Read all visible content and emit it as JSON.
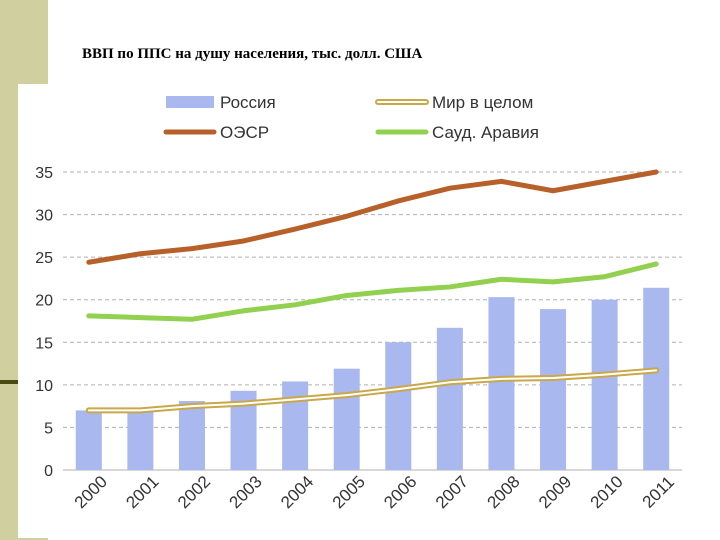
{
  "title": "ВВП по ППС на душу населения, тыс. долл. США",
  "colors": {
    "side_strip": "#cfcf9f",
    "russia_bar": "#a9b8ef",
    "world_line": "#c9a84a",
    "oecd_line": "#b8602a",
    "saudi_line": "#92d050",
    "grid": "#b0b0b0"
  },
  "chart_data": {
    "type": "bar",
    "title": "ВВП по ППС на душу населения, тыс. долл. США",
    "xlabel": "",
    "ylabel": "",
    "categories": [
      "2000",
      "2001",
      "2002",
      "2003",
      "2004",
      "2005",
      "2006",
      "2007",
      "2008",
      "2009",
      "2010",
      "2011"
    ],
    "ylim": [
      0,
      35
    ],
    "yticks": [
      0,
      5,
      10,
      15,
      20,
      25,
      30,
      35
    ],
    "grid": true,
    "legend_position": "top",
    "series": [
      {
        "name": "Россия",
        "kind": "bar",
        "values": [
          7,
          7.2,
          8.1,
          9.3,
          10.4,
          11.9,
          15,
          16.7,
          20.3,
          18.9,
          20,
          21.4
        ]
      },
      {
        "name": "Мир в целом",
        "kind": "line",
        "values": [
          7,
          7,
          7.5,
          7.8,
          8.3,
          8.8,
          9.5,
          10.3,
          10.7,
          10.8,
          11.2,
          11.7
        ]
      },
      {
        "name": "ОЭСР",
        "kind": "line",
        "values": [
          24.4,
          25.4,
          26,
          26.9,
          28.3,
          29.8,
          31.6,
          33.1,
          33.9,
          32.8,
          33.9,
          35
        ]
      },
      {
        "name": "Сауд. Аравия",
        "kind": "line",
        "values": [
          18.1,
          17.9,
          17.7,
          18.7,
          19.4,
          20.5,
          21.1,
          21.5,
          22.4,
          22.1,
          22.7,
          24.2
        ]
      }
    ]
  }
}
